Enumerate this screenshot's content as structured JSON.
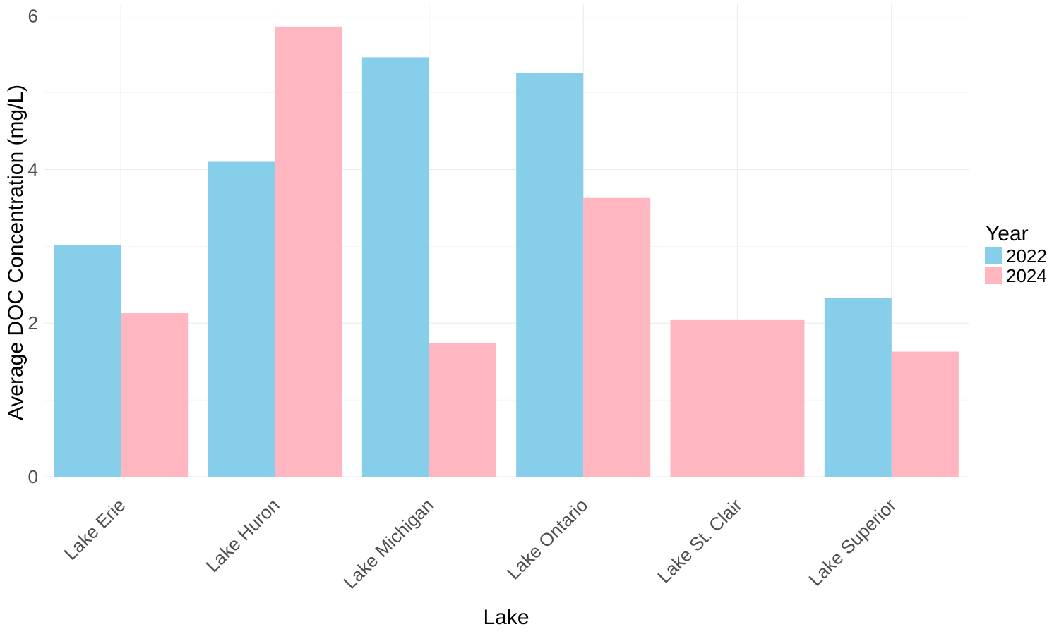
{
  "chart_data": {
    "type": "bar",
    "title": "",
    "xlabel": "Lake",
    "ylabel": "Average DOC Concentration (mg/L)",
    "categories": [
      "Lake Erie",
      "Lake Huron",
      "Lake Michigan",
      "Lake Ontario",
      "Lake St. Clair",
      "Lake Superior"
    ],
    "series": [
      {
        "name": "2022",
        "color": "#87CEEB",
        "values": [
          3.02,
          4.1,
          5.46,
          5.26,
          null,
          2.33
        ]
      },
      {
        "name": "2024",
        "color": "#FFB6C1",
        "values": [
          2.13,
          5.86,
          1.74,
          3.63,
          2.04,
          1.63
        ]
      }
    ],
    "ylim": [
      0,
      6.15
    ],
    "yticks": [
      0,
      2,
      4,
      6
    ],
    "grid": true,
    "legend": {
      "title": "Year",
      "position": "right"
    }
  }
}
